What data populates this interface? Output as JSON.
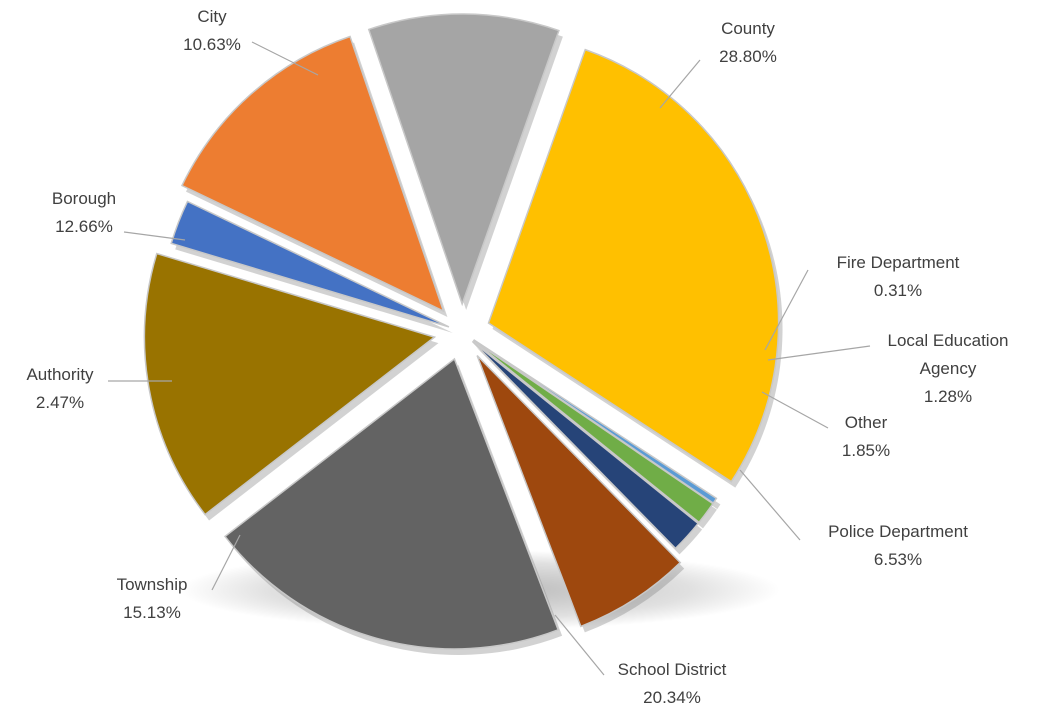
{
  "chart_data": {
    "type": "pie",
    "title": "",
    "exploded": true,
    "slices": [
      {
        "label": "County",
        "value": 28.8,
        "value_label": "28.80%",
        "color": "#FFC000"
      },
      {
        "label": "Fire Department",
        "value": 0.31,
        "value_label": "0.31%",
        "color": "#5B9BD5"
      },
      {
        "label": "Local Education Agency",
        "value": 1.28,
        "value_label": "1.28%",
        "color": "#70AD47"
      },
      {
        "label": "Other",
        "value": 1.85,
        "value_label": "1.85%",
        "color": "#264478"
      },
      {
        "label": "Police Department",
        "value": 6.53,
        "value_label": "6.53%",
        "color": "#9E480E"
      },
      {
        "label": "School District",
        "value": 20.34,
        "value_label": "20.34%",
        "color": "#636363"
      },
      {
        "label": "Township",
        "value": 15.13,
        "value_label": "15.13%",
        "color": "#997300"
      },
      {
        "label": "Authority",
        "value": 2.47,
        "value_label": "2.47%",
        "color": "#4472C4"
      },
      {
        "label": "Borough",
        "value": 12.66,
        "value_label": "12.66%",
        "color": "#ED7D31"
      },
      {
        "label": "City",
        "value": 10.63,
        "value_label": "10.63%",
        "color": "#A5A5A5"
      }
    ]
  }
}
